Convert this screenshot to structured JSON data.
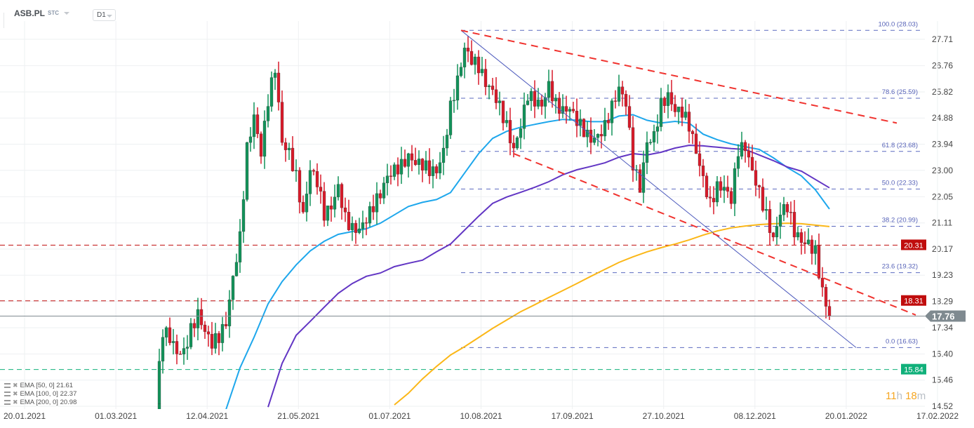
{
  "header": {
    "symbol": "ASB.PL",
    "market": "STC",
    "timeframe": "D1"
  },
  "legend": [
    {
      "label": "EMA [50, 0] 21.61",
      "color": "#1ea7ec"
    },
    {
      "label": "EMA [100, 0] 22.37",
      "color": "#6236c4"
    },
    {
      "label": "EMA [200, 0] 20.98",
      "color": "#fbb718"
    }
  ],
  "timer": {
    "h": "11",
    "h_unit": "h",
    "m": "18",
    "m_unit": "m"
  },
  "colors": {
    "up": "#13925a",
    "down": "#d81b2a",
    "fib": "#3f51b5",
    "trend": "#f0322e",
    "grid": "#eef0f2"
  },
  "chart_data": {
    "type": "candlestick",
    "symbol": "ASB.PL",
    "ylim": [
      14.52,
      27.71
    ],
    "y_ticks": [
      "27.71",
      "26.76",
      "25.82",
      "24.88",
      "23.94",
      "23.00",
      "22.05",
      "21.11",
      "20.17",
      "19.23",
      "18.29",
      "17.34",
      "16.40",
      "15.46",
      "14.52"
    ],
    "x_ticks": [
      "20.01.2021",
      "01.03.2021",
      "12.04.2021",
      "21.05.2021",
      "01.07.2021",
      "10.08.2021",
      "17.09.2021",
      "27.10.2021",
      "08.12.2021",
      "20.01.2022",
      "17.02.2022"
    ],
    "grid": true,
    "closes_approx": [
      14.6,
      17.0,
      16.8,
      16.4,
      16.6,
      17.5,
      18.0,
      17.2,
      16.6,
      16.8,
      17.4,
      19.2,
      20.8,
      24.0,
      25.0,
      23.5,
      25.3,
      26.5,
      24.0,
      23.8,
      23.0,
      21.5,
      23.0,
      22.4,
      21.2,
      21.6,
      22.5,
      21.5,
      21.1,
      20.9,
      21.1,
      21.5,
      22.0,
      22.8,
      23.2,
      23.4,
      23.6,
      23.2,
      23.0,
      22.8,
      22.9,
      23.8,
      25.5,
      26.4,
      27.4,
      26.8,
      26.5,
      26.0,
      25.9,
      25.5,
      24.8,
      23.8,
      24.5,
      25.5,
      25.3,
      25.3,
      26.2,
      25.6,
      25.3,
      25.2,
      24.6,
      24.2,
      24.0,
      24.3,
      24.8,
      25.5,
      26.0,
      25.3,
      23.0,
      22.2,
      24.0,
      24.4,
      25.6,
      25.8,
      25.1,
      24.9,
      24.4,
      23.6,
      22.8,
      22.0,
      22.6,
      22.4,
      21.8,
      23.5,
      23.7,
      23.0,
      22.4,
      21.6,
      20.6,
      21.4,
      21.5,
      20.6,
      20.4,
      20.5,
      20.3,
      18.8,
      17.76
    ],
    "ema": [
      {
        "name": "EMA [50, 0]",
        "last": 21.61,
        "color": "#1ea7ec",
        "values": [
          null,
          null,
          null,
          null,
          null,
          14.4,
          15.9,
          17.0,
          18.2,
          19.0,
          19.6,
          20.1,
          20.45,
          20.7,
          20.8,
          20.9,
          21.1,
          21.4,
          21.7,
          21.85,
          21.95,
          22.2,
          22.9,
          23.6,
          24.15,
          24.4,
          24.55,
          24.65,
          24.75,
          24.83,
          24.8,
          24.75,
          24.75,
          24.95,
          25.0,
          24.8,
          24.7,
          24.76,
          24.7,
          24.3,
          24.1,
          23.95,
          23.85,
          23.75,
          23.45,
          23.1,
          22.8,
          22.3,
          21.61
        ]
      },
      {
        "name": "EMA [100, 0]",
        "last": 22.37,
        "color": "#6236c4",
        "values": [
          null,
          null,
          null,
          null,
          null,
          null,
          null,
          null,
          14.49,
          16.06,
          17.07,
          17.57,
          18.08,
          18.58,
          18.93,
          19.19,
          19.31,
          19.54,
          19.66,
          19.77,
          20.07,
          20.35,
          20.85,
          21.35,
          21.81,
          22.04,
          22.21,
          22.39,
          22.59,
          22.84,
          23.02,
          23.14,
          23.27,
          23.47,
          23.6,
          23.55,
          23.65,
          23.8,
          23.9,
          23.88,
          23.83,
          23.78,
          23.75,
          23.55,
          23.35,
          23.12,
          22.97,
          22.67,
          22.37
        ]
      },
      {
        "name": "EMA [200, 0]",
        "last": 20.98,
        "color": "#fbb718",
        "values": [
          null,
          null,
          null,
          null,
          null,
          null,
          null,
          null,
          null,
          null,
          null,
          null,
          null,
          null,
          null,
          null,
          null,
          14.57,
          14.99,
          15.5,
          15.95,
          16.36,
          16.66,
          16.99,
          17.32,
          17.62,
          17.92,
          18.17,
          18.43,
          18.68,
          18.93,
          19.19,
          19.44,
          19.69,
          19.89,
          20.07,
          20.22,
          20.35,
          20.5,
          20.67,
          20.82,
          20.93,
          21.0,
          21.05,
          21.08,
          21.1,
          21.08,
          21.03,
          20.98
        ]
      }
    ],
    "fibonacci": [
      {
        "label": "100.0 (28.03)",
        "price": 28.03
      },
      {
        "label": "78.6 (25.59)",
        "price": 25.59
      },
      {
        "label": "61.8 (23.68)",
        "price": 23.68
      },
      {
        "label": "50.0 (22.33)",
        "price": 22.33
      },
      {
        "label": "38.2 (20.99)",
        "price": 20.99
      },
      {
        "label": "23.6 (19.32)",
        "price": 19.32
      },
      {
        "label": "0.0 (16.63)",
        "price": 16.63
      }
    ],
    "levels": [
      {
        "label": "20.31",
        "price": 20.31,
        "color": "#c00d0d"
      },
      {
        "label": "18.31",
        "price": 18.31,
        "color": "#c00d0d"
      },
      {
        "label": "15.84",
        "price": 15.84,
        "color": "#10b07a"
      }
    ],
    "last_price": {
      "label": "17.76",
      "price": 17.76,
      "color": "#7f8a90"
    }
  }
}
